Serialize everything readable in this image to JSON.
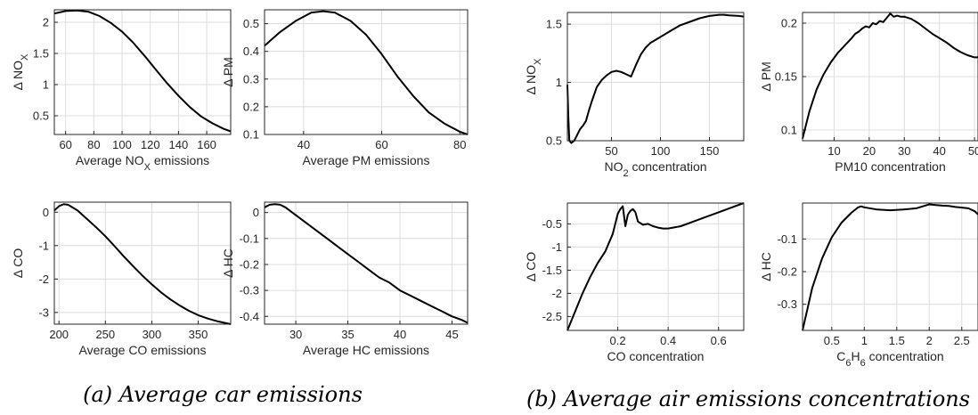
{
  "captions": {
    "left": "(a) Average car emissions",
    "right": "(b) Average air emissions concentrations"
  },
  "colors": {
    "line": "#000000",
    "grid": "#dcdcdc",
    "axis": "#262626"
  },
  "chart_data": [
    {
      "type": "line",
      "id": "a1",
      "xlabel": "Average NOX emissions",
      "xlabel_sub": "X",
      "xlabel_pre": "Average NO",
      "xlabel_post": " emissions",
      "ylabel": "Δ NOX",
      "ylabel_pre": "Δ NO",
      "ylabel_sub": "X",
      "xlim": [
        52,
        177
      ],
      "ylim": [
        0.2,
        2.2
      ],
      "xticks": [
        60,
        80,
        100,
        120,
        140,
        160
      ],
      "yticks": [
        0.5,
        1,
        1.5,
        2
      ],
      "ytick_labels": [
        "0.5",
        "1",
        "1.5",
        "2"
      ],
      "grid": true,
      "series": [
        {
          "x": [
            52,
            60,
            68,
            76,
            84,
            92,
            100,
            108,
            116,
            124,
            132,
            140,
            148,
            156,
            164,
            172,
            177
          ],
          "y": [
            2.14,
            2.18,
            2.19,
            2.17,
            2.1,
            1.99,
            1.85,
            1.67,
            1.46,
            1.24,
            1.02,
            0.82,
            0.64,
            0.49,
            0.38,
            0.29,
            0.25
          ]
        }
      ]
    },
    {
      "type": "line",
      "id": "a2",
      "xlabel": "Average PM emissions",
      "ylabel": "Δ PM",
      "xlim": [
        30,
        82
      ],
      "ylim": [
        0.1,
        0.55
      ],
      "xticks": [
        40,
        60,
        80
      ],
      "yticks": [
        0.1,
        0.2,
        0.3,
        0.4,
        0.5
      ],
      "ytick_labels": [
        "0.1",
        "0.2",
        "0.3",
        "0.4",
        "0.5"
      ],
      "grid": true,
      "series": [
        {
          "x": [
            30,
            34,
            38,
            42,
            45,
            48,
            52,
            56,
            60,
            64,
            68,
            72,
            76,
            80,
            82
          ],
          "y": [
            0.42,
            0.47,
            0.51,
            0.54,
            0.545,
            0.54,
            0.51,
            0.46,
            0.39,
            0.31,
            0.24,
            0.18,
            0.14,
            0.11,
            0.1
          ]
        }
      ]
    },
    {
      "type": "line",
      "id": "a3",
      "xlabel": "Average CO emissions",
      "ylabel": "Δ CO",
      "xlim": [
        195,
        385
      ],
      "ylim": [
        -3.35,
        0.3
      ],
      "xticks": [
        200,
        250,
        300,
        350
      ],
      "yticks": [
        -3,
        -2,
        -1,
        0
      ],
      "ytick_labels": [
        "-3",
        "-2",
        "-1",
        "0"
      ],
      "grid": true,
      "series": [
        {
          "x": [
            195,
            200,
            205,
            210,
            220,
            230,
            240,
            250,
            260,
            270,
            280,
            290,
            300,
            310,
            320,
            330,
            340,
            350,
            360,
            370,
            380,
            385
          ],
          "y": [
            0.05,
            0.18,
            0.24,
            0.22,
            0.05,
            -0.2,
            -0.45,
            -0.72,
            -1.02,
            -1.33,
            -1.62,
            -1.9,
            -2.16,
            -2.4,
            -2.61,
            -2.79,
            -2.95,
            -3.08,
            -3.18,
            -3.26,
            -3.32,
            -3.35
          ]
        }
      ]
    },
    {
      "type": "line",
      "id": "a4",
      "xlabel": "Average HC emissions",
      "ylabel": "Δ HC",
      "xlim": [
        27,
        46.5
      ],
      "ylim": [
        -0.43,
        0.04
      ],
      "xticks": [
        30,
        35,
        40,
        45
      ],
      "yticks": [
        -0.4,
        -0.3,
        -0.2,
        -0.1,
        0
      ],
      "ytick_labels": [
        "-0.4",
        "-0.3",
        "-0.2",
        "-0.1",
        "0"
      ],
      "grid": true,
      "series": [
        {
          "x": [
            27,
            27.5,
            28,
            28.5,
            29,
            30,
            31,
            32,
            33,
            34,
            35,
            36,
            37,
            38,
            39,
            40,
            41,
            42,
            43,
            44,
            45,
            46,
            46.5
          ],
          "y": [
            0.02,
            0.03,
            0.032,
            0.03,
            0.02,
            -0.01,
            -0.04,
            -0.07,
            -0.1,
            -0.13,
            -0.16,
            -0.19,
            -0.22,
            -0.25,
            -0.27,
            -0.3,
            -0.32,
            -0.34,
            -0.36,
            -0.38,
            -0.4,
            -0.415,
            -0.425
          ]
        }
      ]
    },
    {
      "type": "line",
      "id": "b1",
      "xlabel": "NO2 concentration",
      "xlabel_pre": "NO",
      "xlabel_sub": "2",
      "xlabel_post": " concentration",
      "ylabel": "Δ NOX",
      "ylabel_pre": "Δ NO",
      "ylabel_sub": "X",
      "xlim": [
        5,
        185
      ],
      "ylim": [
        0.5,
        1.6
      ],
      "xticks": [
        50,
        100,
        150
      ],
      "yticks": [
        0.5,
        1,
        1.5
      ],
      "ytick_labels": [
        "0.5",
        "1",
        "1.5"
      ],
      "grid": true,
      "series": [
        {
          "x": [
            5,
            6,
            7,
            9,
            12,
            15,
            18,
            21,
            24,
            27,
            30,
            35,
            40,
            45,
            50,
            55,
            60,
            65,
            70,
            75,
            80,
            85,
            90,
            100,
            110,
            120,
            130,
            140,
            150,
            160,
            165,
            170,
            180,
            185
          ],
          "y": [
            0.98,
            0.7,
            0.5,
            0.48,
            0.5,
            0.55,
            0.6,
            0.63,
            0.67,
            0.76,
            0.84,
            0.96,
            1.02,
            1.06,
            1.09,
            1.1,
            1.09,
            1.07,
            1.05,
            1.15,
            1.24,
            1.3,
            1.34,
            1.39,
            1.44,
            1.49,
            1.52,
            1.55,
            1.57,
            1.58,
            1.58,
            1.575,
            1.57,
            1.565
          ]
        }
      ]
    },
    {
      "type": "line",
      "id": "b2",
      "xlabel": "PM10 concentration",
      "ylabel": "Δ PM",
      "xlim": [
        1,
        51
      ],
      "ylim": [
        0.09,
        0.21
      ],
      "xticks": [
        10,
        20,
        30,
        40,
        50
      ],
      "yticks": [
        0.1,
        0.15,
        0.2
      ],
      "ytick_labels": [
        "0.1",
        "0.15",
        "0.2"
      ],
      "grid": true,
      "series": [
        {
          "x": [
            1,
            3,
            5,
            7,
            9,
            11,
            13,
            15,
            16,
            17,
            18,
            19,
            20,
            21,
            22,
            23,
            24,
            25,
            26,
            27,
            28,
            29,
            30,
            32,
            34,
            36,
            38,
            40,
            42,
            44,
            46,
            48,
            50,
            51
          ],
          "y": [
            0.092,
            0.118,
            0.138,
            0.152,
            0.163,
            0.172,
            0.179,
            0.186,
            0.19,
            0.192,
            0.195,
            0.197,
            0.196,
            0.2,
            0.199,
            0.202,
            0.201,
            0.205,
            0.209,
            0.206,
            0.207,
            0.206,
            0.206,
            0.204,
            0.2,
            0.195,
            0.19,
            0.186,
            0.182,
            0.177,
            0.173,
            0.17,
            0.168,
            0.168
          ]
        }
      ]
    },
    {
      "type": "line",
      "id": "b3",
      "xlabel": "CO concentration",
      "ylabel": "Δ CO",
      "xlim": [
        0,
        0.7
      ],
      "ylim": [
        -2.8,
        -0.05
      ],
      "xticks": [
        0.2,
        0.4,
        0.6
      ],
      "yticks": [
        -2.5,
        -2,
        -1.5,
        -1,
        -0.5
      ],
      "ytick_labels": [
        "-2.5",
        "-2",
        "-1.5",
        "-1",
        "-0.5"
      ],
      "grid": true,
      "series": [
        {
          "x": [
            0,
            0.03,
            0.06,
            0.09,
            0.12,
            0.15,
            0.18,
            0.2,
            0.21,
            0.22,
            0.23,
            0.24,
            0.25,
            0.26,
            0.27,
            0.28,
            0.3,
            0.32,
            0.34,
            0.36,
            0.38,
            0.4,
            0.45,
            0.5,
            0.55,
            0.6,
            0.65,
            0.7
          ],
          "y": [
            -2.8,
            -2.4,
            -2.0,
            -1.65,
            -1.35,
            -1.1,
            -0.72,
            -0.28,
            -0.18,
            -0.12,
            -0.55,
            -0.3,
            -0.22,
            -0.18,
            -0.25,
            -0.45,
            -0.52,
            -0.5,
            -0.55,
            -0.58,
            -0.6,
            -0.6,
            -0.55,
            -0.45,
            -0.35,
            -0.25,
            -0.15,
            -0.05
          ]
        }
      ]
    },
    {
      "type": "line",
      "id": "b4",
      "xlabel": "C6H6 concentration",
      "xlabel_pre": "C",
      "xlabel_sub": "6",
      "xlabel_mid": "H",
      "xlabel_sub2": "6",
      "xlabel_post": " concentration",
      "ylabel": "Δ HC",
      "xlim": [
        0.05,
        2.75
      ],
      "ylim": [
        -0.38,
        0.01
      ],
      "xticks": [
        0.5,
        1,
        1.5,
        2,
        2.5
      ],
      "yticks": [
        -0.3,
        -0.2,
        -0.1
      ],
      "ytick_labels": [
        "-0.3",
        "-0.2",
        "-0.1"
      ],
      "grid": true,
      "series": [
        {
          "x": [
            0.05,
            0.2,
            0.35,
            0.5,
            0.65,
            0.8,
            0.9,
            0.95,
            1.0,
            1.2,
            1.4,
            1.6,
            1.8,
            1.9,
            2.0,
            2.1,
            2.2,
            2.3,
            2.4,
            2.5,
            2.6,
            2.7,
            2.75
          ],
          "y": [
            -0.38,
            -0.25,
            -0.16,
            -0.095,
            -0.05,
            -0.02,
            -0.004,
            0.0,
            -0.003,
            -0.01,
            -0.012,
            -0.01,
            -0.006,
            0.0,
            0.006,
            0.004,
            0.002,
            0.001,
            -0.002,
            -0.004,
            -0.006,
            -0.015,
            -0.025
          ]
        }
      ]
    }
  ]
}
